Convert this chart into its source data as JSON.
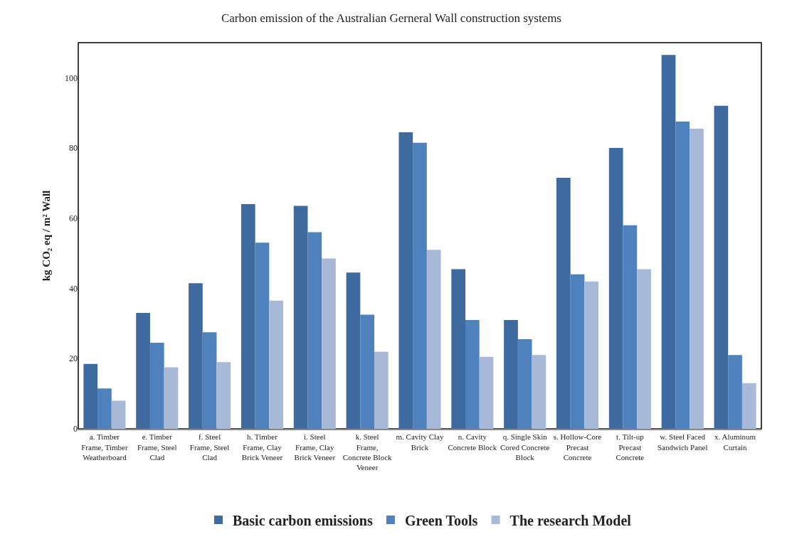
{
  "chart_data": {
    "type": "bar",
    "title": "Carbon emission of the Australian Gerneral Wall construction systems",
    "ylabel": "kg CO₂ eq / m² Wall",
    "categories": [
      "a. Timber Frame, Timber Weatherboard",
      "e. Timber Frame, Steel Clad",
      "f. Steel Frame, Steel Clad",
      "h. Timber Frame, Clay Brick Veneer",
      "i. Steel Frame, Clay Brick Veneer",
      "k. Steel Frame, Concrete Block Veneer",
      "m. Cavity Clay Brick",
      "n. Cavity Concrete Block",
      "q. Single Skin Cored Concrete Block",
      "s. Hollow-Core Precast Concrete",
      "t. Tilt-up Precast Concrete",
      "w. Steel Faced Sandwich Panel",
      "x. Aluminum Curtain"
    ],
    "series": [
      {
        "name": "Basic carbon emissions",
        "color": "#3f6a9f",
        "values": [
          18.5,
          33,
          41.5,
          64,
          63.5,
          44.5,
          84.5,
          45.5,
          31,
          71.5,
          80,
          106.5,
          92
        ]
      },
      {
        "name": "Green Tools",
        "color": "#4f81bd",
        "values": [
          11.5,
          24.5,
          27.5,
          53,
          56,
          32.5,
          81.5,
          31,
          25.5,
          44,
          58,
          87.5,
          21
        ]
      },
      {
        "name": "The research Model",
        "color": "#a8b9d8",
        "values": [
          8,
          17.5,
          19,
          36.5,
          48.5,
          22,
          51,
          20.5,
          21,
          42,
          45.5,
          85.5,
          13
        ]
      }
    ],
    "ylim": [
      0,
      110
    ],
    "yticks": [
      0,
      20,
      40,
      60,
      80,
      100
    ],
    "grid": false,
    "legend": "bottom"
  }
}
